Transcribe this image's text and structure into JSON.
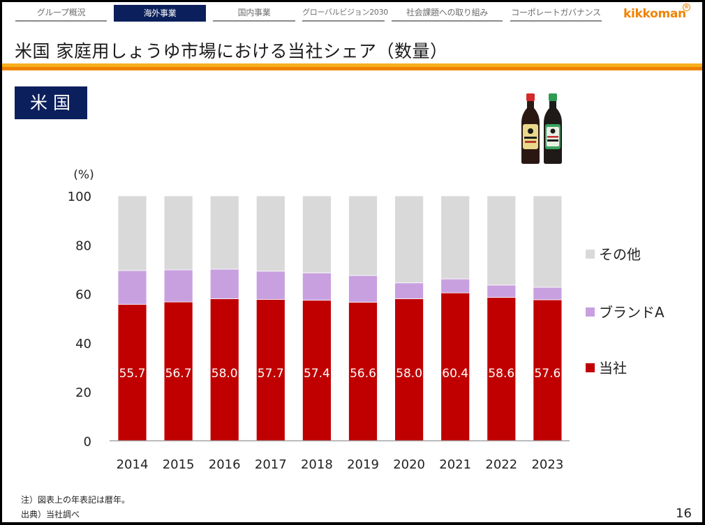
{
  "nav": {
    "tabs": [
      {
        "label": "グループ概況",
        "active": false
      },
      {
        "label": "海外事業",
        "active": true
      },
      {
        "label": "国内事業",
        "active": false
      },
      {
        "label": "グローバルビジョン2030",
        "active": false
      },
      {
        "label": "社会課題への取り組み",
        "active": false
      },
      {
        "label": "コーポレートガバナンス",
        "active": false
      }
    ],
    "logo": "kikkoman",
    "logo_mark": "®"
  },
  "page": {
    "title": "米国 家庭用しょうゆ市場における当社シェア（数量）",
    "region_badge": "米国",
    "product_image": "kikkoman-soy-sauce-bottles",
    "notes": [
      "注）図表上の年表記は暦年。",
      "出典）当社調べ"
    ],
    "page_number": "16"
  },
  "colors": {
    "accent_navy": "#0b1f5c",
    "accent_orange": "#ee8200",
    "company": "#c00000",
    "brand_a": "#c8a0e0",
    "others": "#d9d9d9"
  },
  "chart_data": {
    "type": "bar",
    "stacked": true,
    "title": "",
    "ylabel": "(%)",
    "xlabel": "",
    "ylim": [
      0,
      100
    ],
    "yticks": [
      0,
      20,
      40,
      60,
      80,
      100
    ],
    "grid": false,
    "legend_position": "right",
    "categories": [
      "2014",
      "2015",
      "2016",
      "2017",
      "2018",
      "2019",
      "2020",
      "2021",
      "2022",
      "2023"
    ],
    "series": [
      {
        "name": "当社",
        "color": "#c00000",
        "values": [
          55.7,
          56.7,
          58.0,
          57.7,
          57.4,
          56.6,
          58.0,
          60.4,
          58.6,
          57.6
        ],
        "labels": [
          "55.7",
          "56.7",
          "58.0",
          "57.7",
          "57.4",
          "56.6",
          "58.0",
          "60.4",
          "58.6",
          "57.6"
        ]
      },
      {
        "name": "ブランドA",
        "color": "#c8a0e0",
        "values": [
          13.8,
          13.1,
          12.1,
          11.6,
          11.2,
          10.9,
          6.5,
          5.7,
          5.0,
          5.1
        ]
      },
      {
        "name": "その他",
        "color": "#d9d9d9",
        "values": [
          30.5,
          30.2,
          29.9,
          30.7,
          31.4,
          32.5,
          35.5,
          33.9,
          36.4,
          37.3
        ]
      }
    ],
    "legend_order": [
      "その他",
      "ブランドA",
      "当社"
    ]
  }
}
